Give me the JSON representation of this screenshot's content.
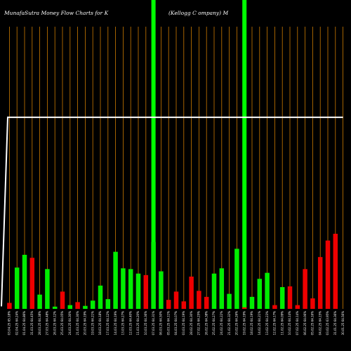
{
  "chart_data": {
    "type": "bar",
    "title_left": "MunafaSutra  Money Flow  Charts for K",
    "title_right": "(Kellogg C                         ompany) M",
    "colors": {
      "background": "#000000",
      "gridline": "#cc7a00",
      "positive": "#00ee00",
      "negative": "#ee0000",
      "highlight": "#00ff00",
      "line": "#ffffff"
    },
    "ylim": [
      0,
      100
    ],
    "line_ylim": [
      0,
      100
    ],
    "categories": [
      "03.04.25  65.18%",
      "02.04.25  64.24%",
      "01.04.25  64.86%",
      "31.03.25  64.45%",
      "28.03.25  64.38%",
      "27.03.25  64.48%",
      "26.03.25  64.12%",
      "25.03.25  64.05%",
      "24.03.25  64.30%",
      "21.03.25  64.30%",
      "20.03.25  64.19%",
      "19.03.25  64.21%",
      "18.03.25  64.18%",
      "17.03.25  64.12%",
      "14.03.25  64.19%",
      "13.03.25  64.27%",
      "12.03.25  64.40%",
      "11.03.25  64.20%",
      "10.03.25  64.36%",
      "07.03.25  64.31%",
      "06.03.25  64.50%",
      "05.03.25  64.11%",
      "04.03.25  64.07%",
      "03.03.25  64.19%",
      "28.02.25  64.30%",
      "27.02.25  64.25%",
      "26.02.25  64.38%",
      "25.02.25  64.27%",
      "24.02.25  64.22%",
      "21.02.25  64.32%",
      "20.02.25  64.26%",
      "19.02.25  64.19%",
      "18.02.25  64.19%",
      "14.02.25  64.21%",
      "13.02.25  64.23%",
      "12.02.25  64.17%",
      "11.02.25  64.09%",
      "10.02.25  64.14%",
      "07.02.25  64.14%",
      "06.02.25  64.06%",
      "05.02.25  64.16%",
      "04.02.25  64.15%",
      "03.02.25  63.95%",
      "31.01.25  64.36%",
      "30.01.25  64.56%"
    ],
    "values": [
      8,
      55,
      72,
      68,
      19,
      53,
      3,
      23,
      5,
      9,
      4,
      11,
      31,
      13,
      76,
      54,
      53,
      47,
      45,
      89,
      50,
      12,
      23,
      10,
      43,
      24,
      16,
      47,
      54,
      20,
      80,
      2,
      16,
      40,
      48,
      5,
      29,
      30,
      5,
      53,
      14,
      69,
      91,
      100,
      0
    ],
    "colors_by_bar": [
      "red",
      "green",
      "green",
      "red",
      "green",
      "green",
      "green",
      "red",
      "green",
      "red",
      "green",
      "green",
      "green",
      "green",
      "green",
      "green",
      "green",
      "green",
      "red",
      "green",
      "green",
      "red",
      "red",
      "red",
      "red",
      "red",
      "red",
      "green",
      "green",
      "green",
      "green",
      "red",
      "green",
      "green",
      "green",
      "red",
      "green",
      "red",
      "red",
      "red",
      "red",
      "red",
      "red",
      "red",
      "red"
    ],
    "highlighted_indices": [
      19,
      31
    ],
    "line_values": [
      1,
      76,
      76,
      76,
      76,
      76,
      76,
      76,
      76,
      76,
      76,
      76,
      76,
      76,
      76,
      76,
      76,
      76,
      76,
      76,
      76,
      76,
      76,
      76,
      76,
      76,
      76,
      76,
      76,
      76,
      76,
      76,
      76,
      76,
      76,
      76,
      76,
      76,
      76,
      76,
      76,
      76,
      76,
      76,
      76
    ],
    "grid": true
  }
}
